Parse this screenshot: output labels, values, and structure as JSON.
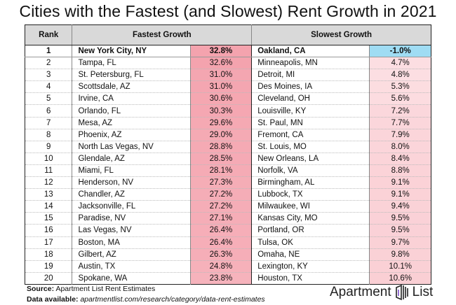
{
  "chart_data": {
    "type": "table",
    "title": "Cities with the Fastest (and Slowest) Rent Growth in 2021",
    "columns": [
      "Rank",
      "Fastest Growth",
      "Slowest Growth"
    ],
    "rows": [
      {
        "rank": "1",
        "fast_city": "New York City, NY",
        "fast_value": "32.8%",
        "slow_city": "Oakland, CA",
        "slow_value": "-1.0%"
      },
      {
        "rank": "2",
        "fast_city": "Tampa, FL",
        "fast_value": "32.6%",
        "slow_city": "Minneapolis, MN",
        "slow_value": "4.7%"
      },
      {
        "rank": "3",
        "fast_city": "St. Petersburg, FL",
        "fast_value": "31.0%",
        "slow_city": "Detroit, MI",
        "slow_value": "4.8%"
      },
      {
        "rank": "4",
        "fast_city": "Scottsdale, AZ",
        "fast_value": "31.0%",
        "slow_city": "Des Moines, IA",
        "slow_value": "5.3%"
      },
      {
        "rank": "5",
        "fast_city": "Irvine, CA",
        "fast_value": "30.6%",
        "slow_city": "Cleveland, OH",
        "slow_value": "5.6%"
      },
      {
        "rank": "6",
        "fast_city": "Orlando, FL",
        "fast_value": "30.3%",
        "slow_city": "Louisville, KY",
        "slow_value": "7.2%"
      },
      {
        "rank": "7",
        "fast_city": "Mesa, AZ",
        "fast_value": "29.6%",
        "slow_city": "St. Paul, MN",
        "slow_value": "7.7%"
      },
      {
        "rank": "8",
        "fast_city": "Phoenix, AZ",
        "fast_value": "29.0%",
        "slow_city": "Fremont, CA",
        "slow_value": "7.9%"
      },
      {
        "rank": "9",
        "fast_city": "North Las Vegas, NV",
        "fast_value": "28.8%",
        "slow_city": "St. Louis, MO",
        "slow_value": "8.0%"
      },
      {
        "rank": "10",
        "fast_city": "Glendale, AZ",
        "fast_value": "28.5%",
        "slow_city": "New Orleans, LA",
        "slow_value": "8.4%"
      },
      {
        "rank": "11",
        "fast_city": "Miami, FL",
        "fast_value": "28.1%",
        "slow_city": "Norfolk, VA",
        "slow_value": "8.8%"
      },
      {
        "rank": "12",
        "fast_city": "Henderson, NV",
        "fast_value": "27.3%",
        "slow_city": "Birmingham, AL",
        "slow_value": "9.1%"
      },
      {
        "rank": "13",
        "fast_city": "Chandler, AZ",
        "fast_value": "27.2%",
        "slow_city": "Lubbock, TX",
        "slow_value": "9.1%"
      },
      {
        "rank": "14",
        "fast_city": "Jacksonville, FL",
        "fast_value": "27.2%",
        "slow_city": "Milwaukee, WI",
        "slow_value": "9.4%"
      },
      {
        "rank": "15",
        "fast_city": "Paradise, NV",
        "fast_value": "27.1%",
        "slow_city": "Kansas City, MO",
        "slow_value": "9.5%"
      },
      {
        "rank": "16",
        "fast_city": "Las Vegas, NV",
        "fast_value": "26.4%",
        "slow_city": "Portland, OR",
        "slow_value": "9.5%"
      },
      {
        "rank": "17",
        "fast_city": "Boston, MA",
        "fast_value": "26.4%",
        "slow_city": "Tulsa, OK",
        "slow_value": "9.7%"
      },
      {
        "rank": "18",
        "fast_city": "Gilbert, AZ",
        "fast_value": "26.3%",
        "slow_city": "Omaha, NE",
        "slow_value": "9.8%"
      },
      {
        "rank": "19",
        "fast_city": "Austin, TX",
        "fast_value": "24.8%",
        "slow_city": "Lexington, KY",
        "slow_value": "10.1%"
      },
      {
        "rank": "20",
        "fast_city": "Spokane, WA",
        "fast_value": "23.8%",
        "slow_city": "Houston, TX",
        "slow_value": "10.6%"
      }
    ],
    "colors": {
      "high": "#f4a3ae",
      "low": "#fff3f4",
      "negative": "#9fdcf3",
      "header": "#d9d9d9"
    }
  },
  "footer": {
    "source_label": "Source:",
    "source_text": "Apartment List Rent Estimates",
    "data_label": "Data available:",
    "data_url": "apartmentlist.com/research/category/data-rent-estimates"
  },
  "logo": {
    "text_left": "Apartment",
    "text_right": "List",
    "icon": "apartment-list-building-icon"
  }
}
